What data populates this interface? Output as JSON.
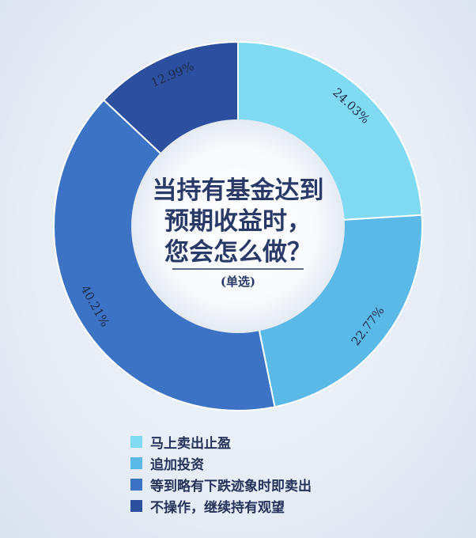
{
  "chart_data": {
    "type": "pie",
    "title": "当持有基金达到预期收益时，您会怎么做？",
    "title_lines": [
      "当持有基金达到",
      "预期收益时，",
      "您会怎么做？"
    ],
    "subtitle": "(单选)",
    "unit": "%",
    "legend_position": "bottom",
    "categories": [
      "马上卖出止盈",
      "追加投资",
      "等到略有下跌迹象时即卖出",
      "不操作，继续持有观望"
    ],
    "values": [
      24.03,
      22.77,
      40.21,
      12.99
    ],
    "labels": [
      "24.03%",
      "22.77%",
      "40.21%",
      "12.99%"
    ],
    "colors": [
      "#7fdaf2",
      "#5bb9e8",
      "#3d73c4",
      "#2c4f9f"
    ]
  }
}
